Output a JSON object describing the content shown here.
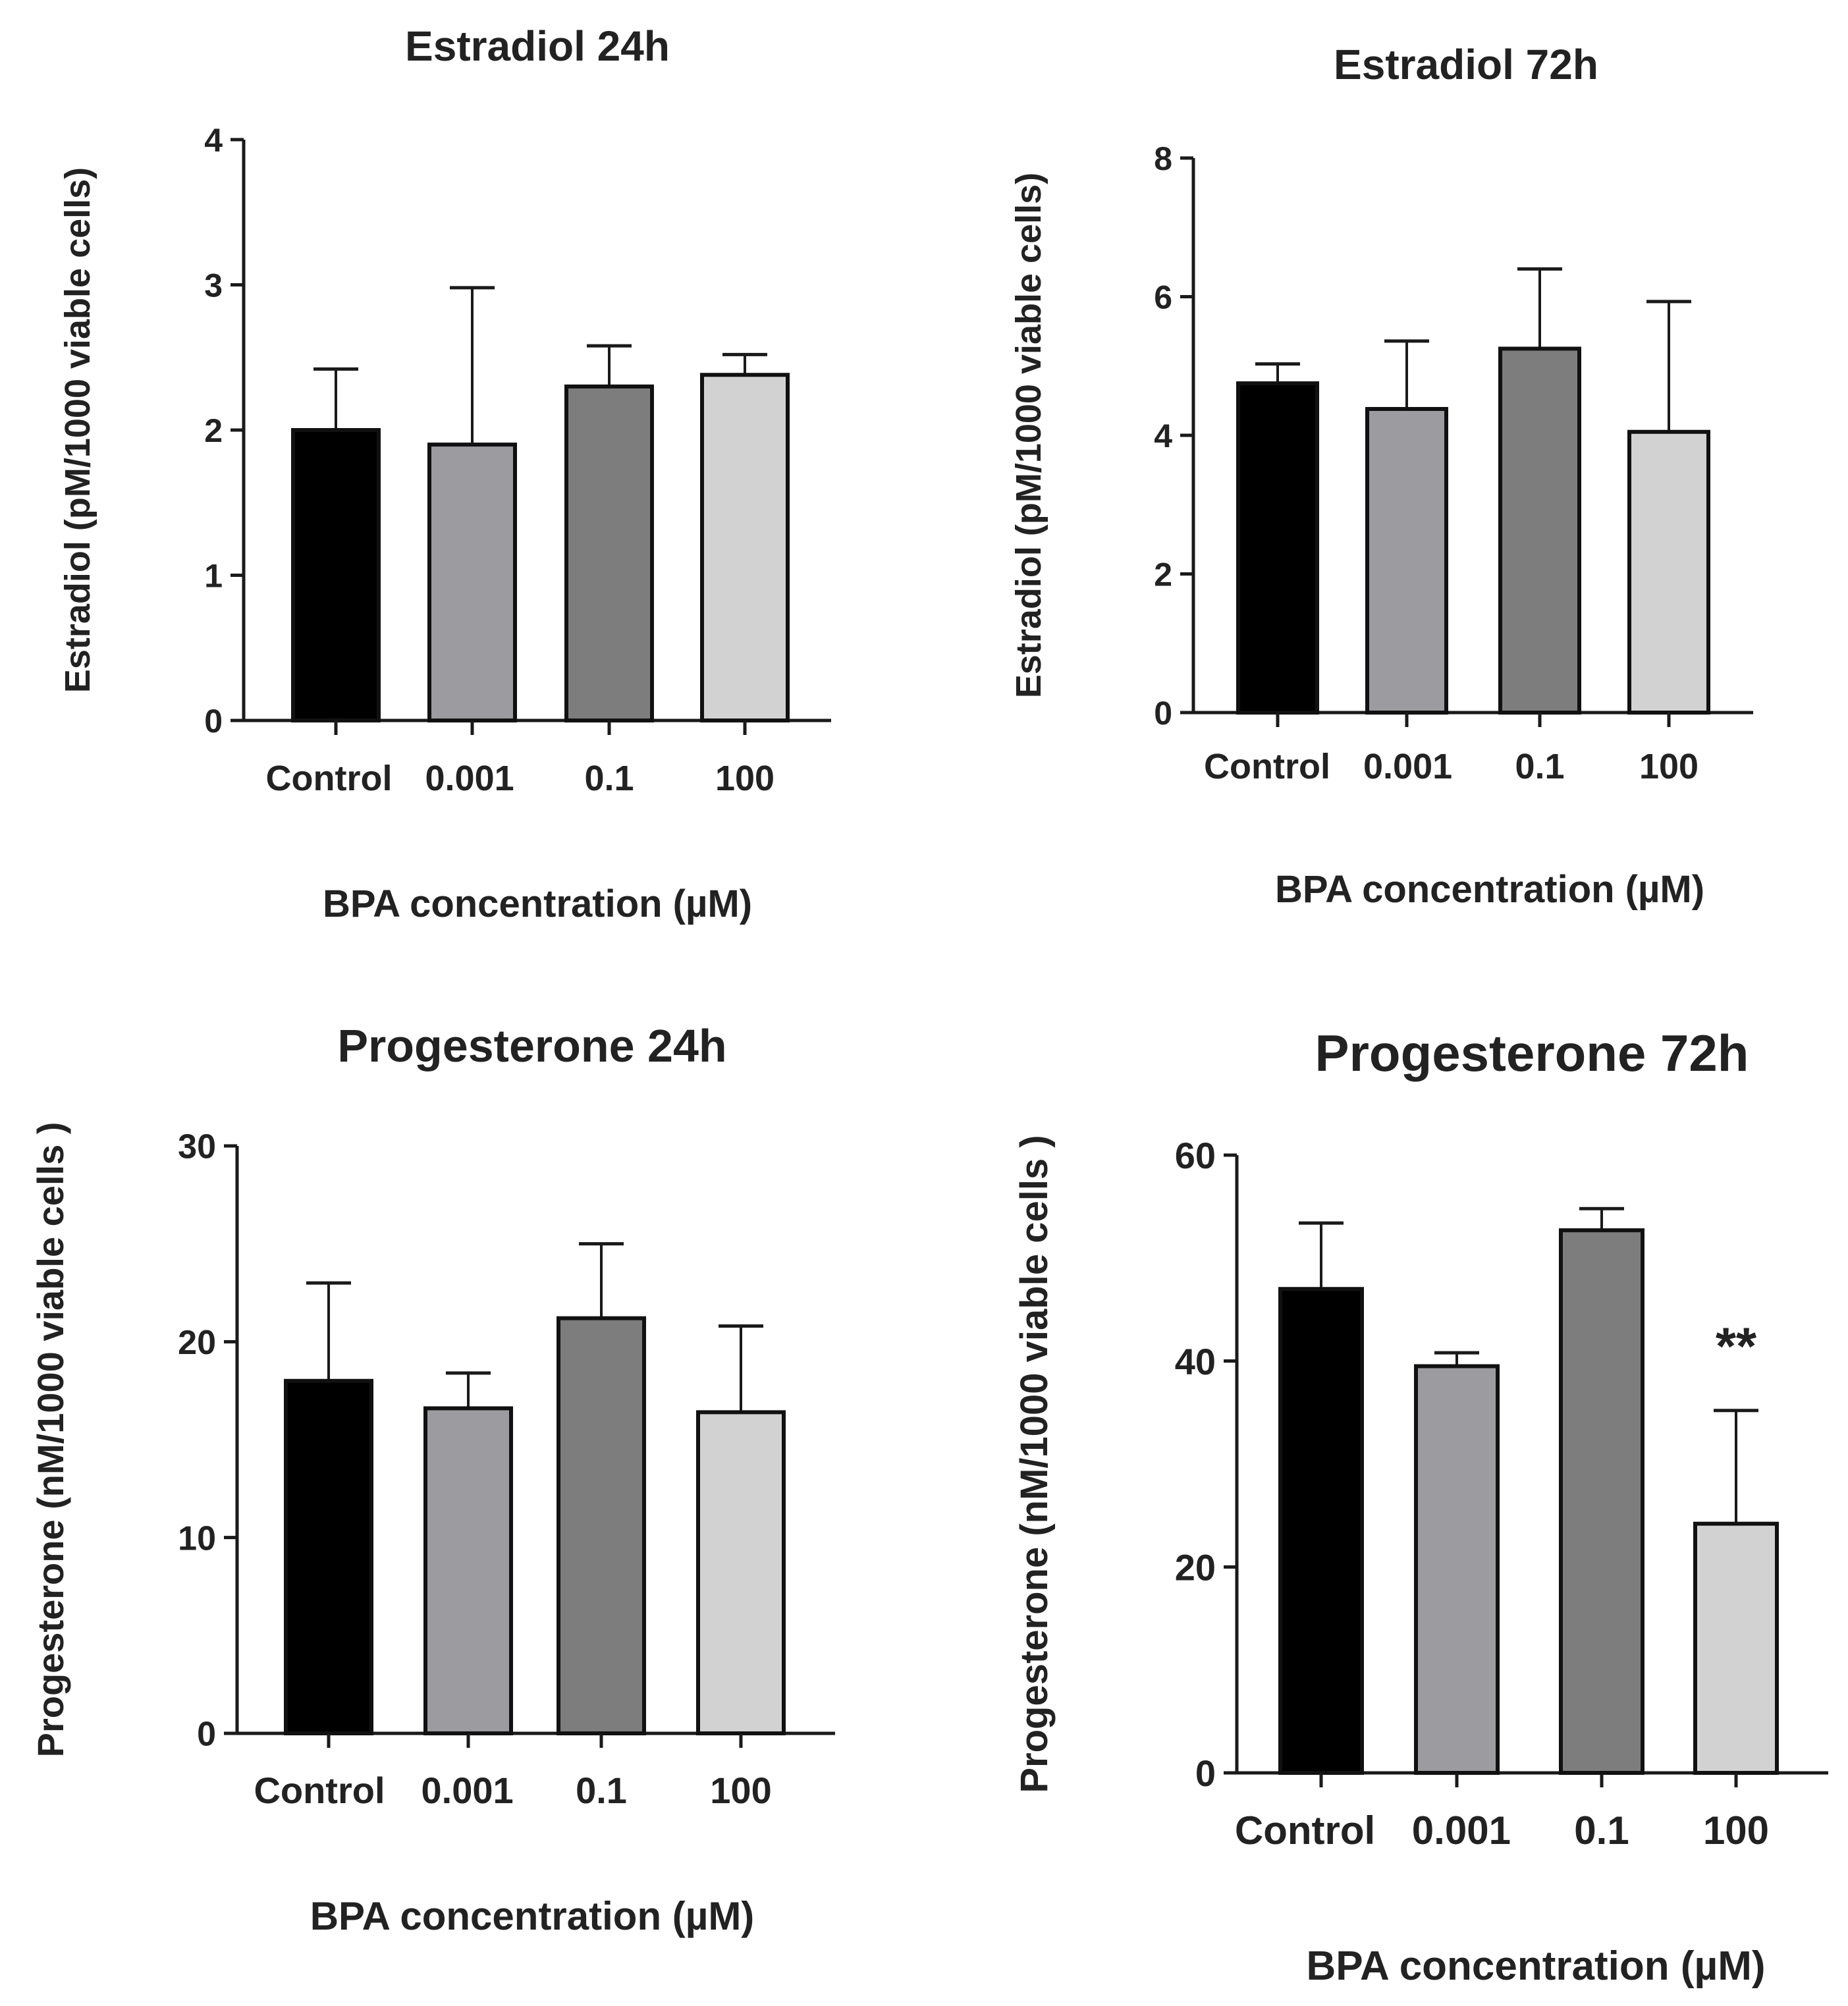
{
  "chart_data": [
    {
      "type": "bar",
      "title": "Estradiol 24h",
      "xlabel": "BPA concentration (µM)",
      "ylabel": "Estradiol (pM/1000 viable cells)",
      "categories": [
        "Control",
        "0.001",
        "0.1",
        "100"
      ],
      "values": [
        2.0,
        1.9,
        2.3,
        2.38
      ],
      "error": [
        0.42,
        1.08,
        0.28,
        0.14
      ],
      "ylim": [
        0,
        4
      ],
      "yticks": [
        0,
        1,
        2,
        3,
        4
      ],
      "colors": [
        "#000000",
        "#9c9ca0",
        "#7d7d7d",
        "#d2d2d2"
      ],
      "annotations": []
    },
    {
      "type": "bar",
      "title": "Estradiol 72h",
      "xlabel": "BPA concentration (µM)",
      "ylabel": "Estradiol (pM/1000 viable cells)",
      "categories": [
        "Control",
        "0.001",
        "0.1",
        "100"
      ],
      "values": [
        4.75,
        4.38,
        5.25,
        4.05
      ],
      "error": [
        0.28,
        0.98,
        1.15,
        1.88
      ],
      "ylim": [
        0,
        8
      ],
      "yticks": [
        0,
        2,
        4,
        6,
        8
      ],
      "colors": [
        "#000000",
        "#9c9ca0",
        "#7d7d7d",
        "#d2d2d2"
      ],
      "annotations": []
    },
    {
      "type": "bar",
      "title": "Progesterone 24h",
      "xlabel": "BPA concentration (µM)",
      "ylabel": "Progesterone (nM/1000 viable cells )",
      "categories": [
        "Control",
        "0.001",
        "0.1",
        "100"
      ],
      "values": [
        18.0,
        16.6,
        21.2,
        16.4
      ],
      "error": [
        5.0,
        1.8,
        3.8,
        4.4
      ],
      "ylim": [
        0,
        30
      ],
      "yticks": [
        0,
        10,
        20,
        30
      ],
      "colors": [
        "#000000",
        "#9c9ca0",
        "#7d7d7d",
        "#d2d2d2"
      ],
      "annotations": []
    },
    {
      "type": "bar",
      "title": "Progesterone 72h",
      "xlabel": "BPA concentration (µM)",
      "ylabel": "Progesterone (nM/1000 viable cells )",
      "categories": [
        "Control",
        "0.001",
        "0.1",
        "100"
      ],
      "values": [
        47.0,
        39.5,
        52.7,
        24.2
      ],
      "error": [
        6.4,
        1.3,
        2.1,
        11.0
      ],
      "ylim": [
        0,
        60
      ],
      "yticks": [
        0,
        20,
        40,
        60
      ],
      "colors": [
        "#000000",
        "#9c9ca0",
        "#7d7d7d",
        "#d2d2d2"
      ],
      "annotations": [
        {
          "bar": 3,
          "text": "**"
        }
      ]
    }
  ]
}
